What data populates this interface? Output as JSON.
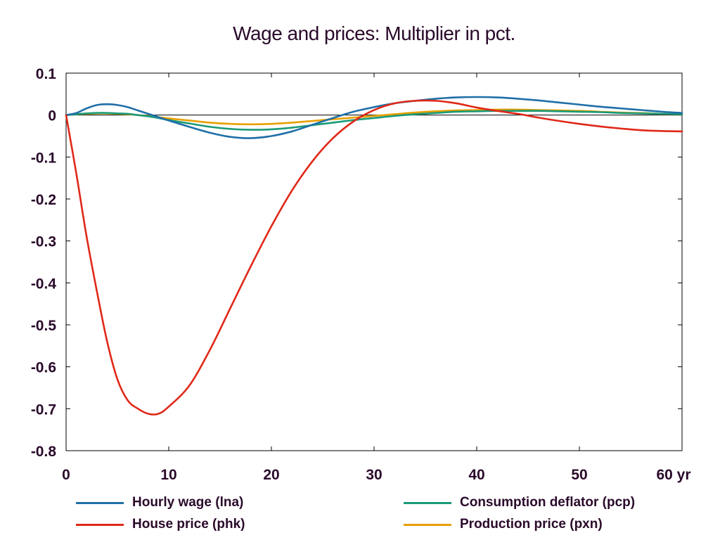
{
  "chart_data": {
    "type": "line",
    "title": "Wage and prices: Multiplier in pct.",
    "xlim": [
      0,
      60
    ],
    "ylim": [
      -0.8,
      0.1
    ],
    "x_ticks": [
      0,
      10,
      20,
      30,
      40,
      50,
      60
    ],
    "x_tick_labels": [
      "0",
      "10",
      "20",
      "30",
      "40",
      "50",
      "60 yr"
    ],
    "y_ticks": [
      0.1,
      0,
      -0.1,
      -0.2,
      -0.3,
      -0.4,
      -0.5,
      -0.6,
      -0.7,
      -0.8
    ],
    "y_tick_labels": [
      "0.1",
      "0",
      "-0.1",
      "-0.2",
      "-0.3",
      "-0.4",
      "-0.5",
      "-0.6",
      "-0.7",
      "-0.8"
    ],
    "grid": false,
    "legend_position": "bottom",
    "x": [
      0,
      1,
      2,
      3,
      4,
      5,
      6,
      7,
      8,
      9,
      10,
      12,
      14,
      16,
      18,
      20,
      22,
      24,
      26,
      28,
      30,
      32,
      34,
      36,
      38,
      40,
      42,
      44,
      46,
      48,
      50,
      52,
      54,
      56,
      58,
      60
    ],
    "series": [
      {
        "name": "Hourly wage (lna)",
        "color": "#1f6fa8",
        "values": [
          0,
          0.005,
          0.016,
          0.024,
          0.026,
          0.024,
          0.019,
          0.011,
          0.003,
          -0.005,
          -0.013,
          -0.028,
          -0.042,
          -0.052,
          -0.055,
          -0.05,
          -0.039,
          -0.023,
          -0.007,
          0.008,
          0.019,
          0.028,
          0.034,
          0.039,
          0.042,
          0.043,
          0.042,
          0.039,
          0.035,
          0.03,
          0.025,
          0.02,
          0.016,
          0.012,
          0.008,
          0.005
        ]
      },
      {
        "name": "Consumption deflator (pcp)",
        "color": "#1a9a78",
        "values": [
          0,
          0.002,
          0.004,
          0.005,
          0.005,
          0.004,
          0.003,
          0.0,
          -0.003,
          -0.007,
          -0.012,
          -0.02,
          -0.028,
          -0.033,
          -0.035,
          -0.034,
          -0.03,
          -0.024,
          -0.018,
          -0.012,
          -0.007,
          -0.002,
          0.002,
          0.005,
          0.008,
          0.009,
          0.01,
          0.01,
          0.01,
          0.009,
          0.008,
          0.007,
          0.005,
          0.004,
          0.003,
          0.002
        ]
      },
      {
        "name": "House price (phk)",
        "color": "#e02818",
        "values": [
          0,
          -0.14,
          -0.29,
          -0.42,
          -0.54,
          -0.63,
          -0.68,
          -0.7,
          -0.712,
          -0.712,
          -0.695,
          -0.645,
          -0.56,
          -0.46,
          -0.36,
          -0.265,
          -0.18,
          -0.11,
          -0.055,
          -0.015,
          0.012,
          0.028,
          0.034,
          0.034,
          0.028,
          0.018,
          0.01,
          0.003,
          -0.006,
          -0.014,
          -0.021,
          -0.027,
          -0.032,
          -0.036,
          -0.038,
          -0.039
        ]
      },
      {
        "name": "Production price (pxn)",
        "color": "#e8a000",
        "values": [
          0,
          0.002,
          0.003,
          0.004,
          0.004,
          0.003,
          0.002,
          0.0,
          -0.002,
          -0.005,
          -0.008,
          -0.013,
          -0.018,
          -0.021,
          -0.022,
          -0.021,
          -0.018,
          -0.014,
          -0.01,
          -0.006,
          -0.002,
          0.002,
          0.006,
          0.009,
          0.011,
          0.012,
          0.013,
          0.013,
          0.012,
          0.011,
          0.01,
          0.008,
          0.006,
          0.005,
          0.003,
          0.002
        ]
      }
    ]
  }
}
